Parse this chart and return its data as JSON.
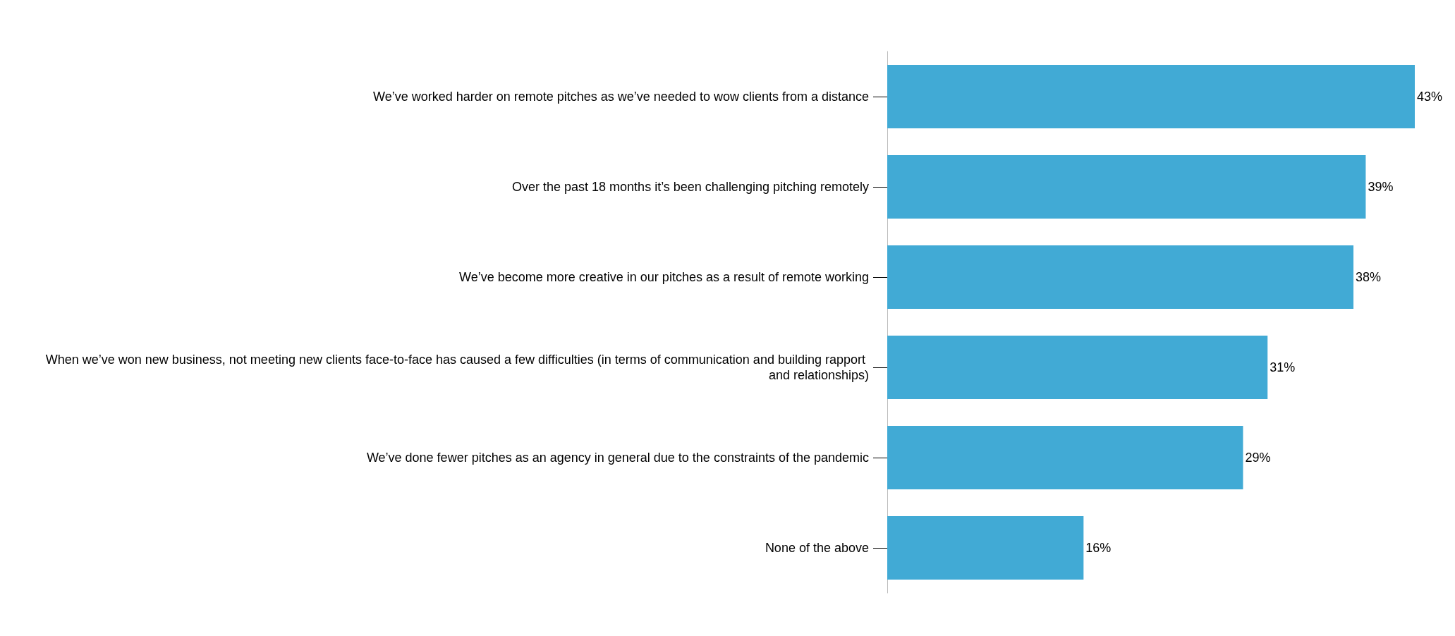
{
  "chart_data": {
    "type": "bar",
    "orientation": "horizontal",
    "categories": [
      "We’ve worked harder on remote pitches as we’ve needed to wow clients from a distance",
      "Over the past 18 months it’s been challenging pitching remotely",
      "We’ve become more creative in our pitches as a result of remote working",
      "When we’ve won new business, not meeting new clients face-to-face has caused a few difficulties (in terms of communication and building rapport and relationships)",
      "We’ve done fewer pitches as an agency in general due to the constraints of the pandemic",
      "None of the above"
    ],
    "values": [
      43,
      39,
      38,
      31,
      29,
      16
    ],
    "value_labels": [
      "43%",
      "39%",
      "38%",
      "31%",
      "29%",
      "16%"
    ],
    "color": "#41aad5"
  }
}
